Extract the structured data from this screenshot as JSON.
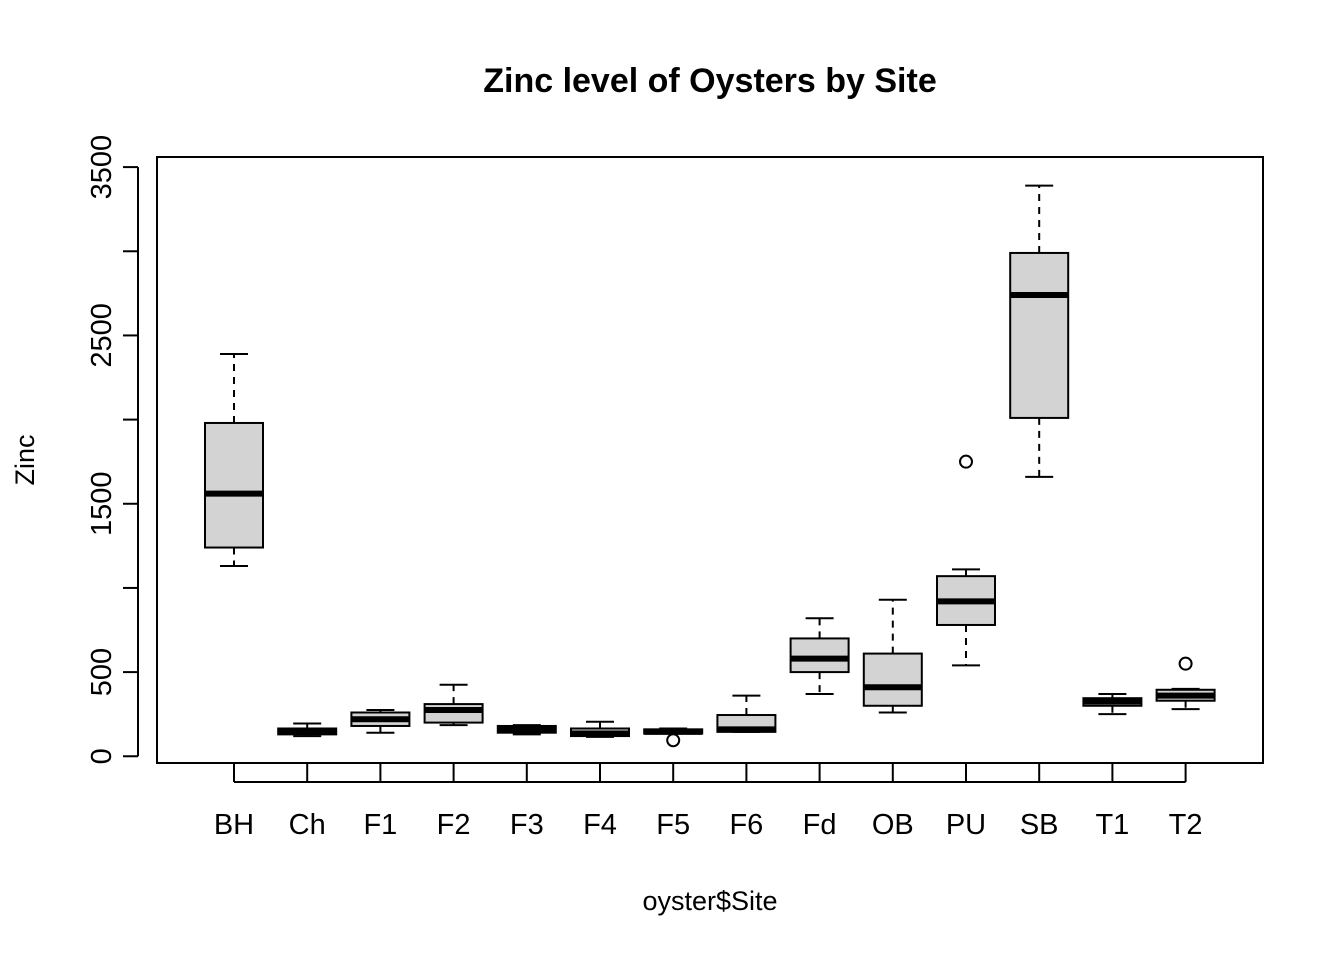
{
  "chart_data": {
    "type": "boxplot",
    "title": "Zinc level of Oysters by Site",
    "xlabel": "oyster$Site",
    "ylabel": "Zinc",
    "ylim": [
      -40,
      3560
    ],
    "y_ticks": [
      0,
      500,
      1500,
      2500,
      3500
    ],
    "y_minor_ticks": [
      1000,
      2000,
      3000
    ],
    "grid": false,
    "box_color": "#d3d3d3",
    "categories": [
      "BH",
      "Ch",
      "F1",
      "F2",
      "F3",
      "F4",
      "F5",
      "F6",
      "Fd",
      "OB",
      "PU",
      "SB",
      "T1",
      "T2"
    ],
    "boxes": [
      {
        "site": "BH",
        "lower_whisker": 1130,
        "q1": 1240,
        "median": 1560,
        "q3": 1980,
        "upper_whisker": 2390,
        "outliers": []
      },
      {
        "site": "Ch",
        "lower_whisker": 120,
        "q1": 130,
        "median": 150,
        "q3": 165,
        "upper_whisker": 195,
        "outliers": []
      },
      {
        "site": "F1",
        "lower_whisker": 140,
        "q1": 180,
        "median": 220,
        "q3": 260,
        "upper_whisker": 275,
        "outliers": []
      },
      {
        "site": "F2",
        "lower_whisker": 185,
        "q1": 200,
        "median": 275,
        "q3": 310,
        "upper_whisker": 425,
        "outliers": []
      },
      {
        "site": "F3",
        "lower_whisker": 130,
        "q1": 140,
        "median": 160,
        "q3": 180,
        "upper_whisker": 185,
        "outliers": []
      },
      {
        "site": "F4",
        "lower_whisker": 115,
        "q1": 120,
        "median": 135,
        "q3": 165,
        "upper_whisker": 205,
        "outliers": []
      },
      {
        "site": "F5",
        "lower_whisker": 135,
        "q1": 135,
        "median": 145,
        "q3": 160,
        "upper_whisker": 165,
        "outliers": [
          95
        ]
      },
      {
        "site": "F6",
        "lower_whisker": 145,
        "q1": 145,
        "median": 160,
        "q3": 245,
        "upper_whisker": 360,
        "outliers": []
      },
      {
        "site": "Fd",
        "lower_whisker": 370,
        "q1": 500,
        "median": 580,
        "q3": 700,
        "upper_whisker": 820,
        "outliers": []
      },
      {
        "site": "OB",
        "lower_whisker": 260,
        "q1": 300,
        "median": 410,
        "q3": 610,
        "upper_whisker": 930,
        "outliers": []
      },
      {
        "site": "PU",
        "lower_whisker": 540,
        "q1": 780,
        "median": 920,
        "q3": 1070,
        "upper_whisker": 1110,
        "outliers": [
          1750
        ]
      },
      {
        "site": "SB",
        "lower_whisker": 1660,
        "q1": 2010,
        "median": 2740,
        "q3": 2990,
        "upper_whisker": 3390,
        "outliers": []
      },
      {
        "site": "T1",
        "lower_whisker": 250,
        "q1": 300,
        "median": 325,
        "q3": 345,
        "upper_whisker": 370,
        "outliers": []
      },
      {
        "site": "T2",
        "lower_whisker": 280,
        "q1": 330,
        "median": 360,
        "q3": 395,
        "upper_whisker": 400,
        "outliers": [
          550
        ]
      }
    ]
  }
}
